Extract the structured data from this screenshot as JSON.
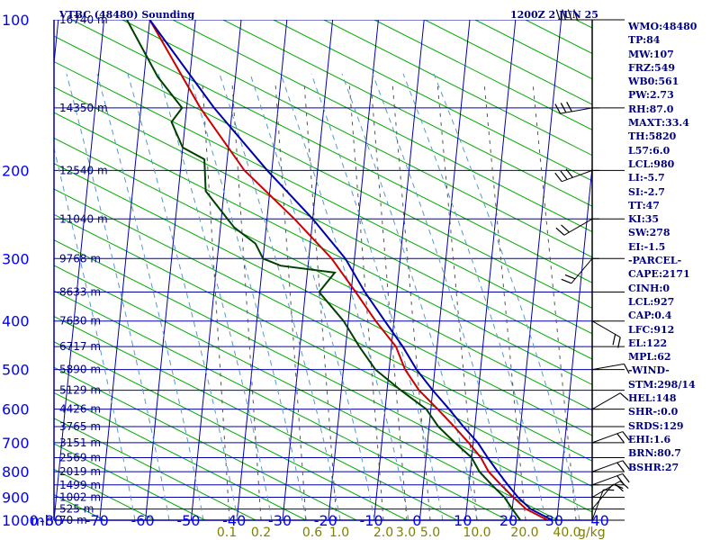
{
  "title_left": "VTBC (48480) Sounding",
  "title_right": "1200Z  2 JUN 25",
  "chart_data": {
    "type": "skew-t",
    "pressure_ticks": [
      100,
      200,
      300,
      400,
      500,
      600,
      700,
      800,
      900,
      1000
    ],
    "pressure_unit": "mb",
    "temperature_ticks": [
      "-80",
      "-70",
      "-60",
      "-50",
      "-40",
      "-30",
      "-20",
      "-10",
      "0",
      "10",
      "20",
      "30",
      "40"
    ],
    "height_labels": [
      {
        "p": 100,
        "label": "16740 m"
      },
      {
        "p": 150,
        "label": "14350 m"
      },
      {
        "p": 200,
        "label": "12540 m"
      },
      {
        "p": 250,
        "label": "11040 m"
      },
      {
        "p": 300,
        "label": "9768 m"
      },
      {
        "p": 350,
        "label": "8633 m"
      },
      {
        "p": 400,
        "label": "7630 m"
      },
      {
        "p": 450,
        "label": "6717 m"
      },
      {
        "p": 500,
        "label": "5890 m"
      },
      {
        "p": 550,
        "label": "5129 m"
      },
      {
        "p": 600,
        "label": "4426 m"
      },
      {
        "p": 650,
        "label": "3765 m"
      },
      {
        "p": 700,
        "label": "3151 m"
      },
      {
        "p": 750,
        "label": "2569 m"
      },
      {
        "p": 800,
        "label": "2019 m"
      },
      {
        "p": 850,
        "label": "1499 m"
      },
      {
        "p": 900,
        "label": "1002 m"
      },
      {
        "p": 950,
        "label": "525 m"
      },
      {
        "p": 1000,
        "label": "70 m"
      }
    ],
    "mixing_ratio_labels": [
      "0.1",
      "0.2",
      "0.6",
      "1.0",
      "2.0",
      "3.0",
      "5.0",
      "10.0",
      "20.0",
      "40.0"
    ],
    "mixing_ratio_unit": "g/kg",
    "series": [
      {
        "color": "#cc0000",
        "points": [
          [
            1000,
            28
          ],
          [
            950,
            23
          ],
          [
            900,
            20
          ],
          [
            850,
            17
          ],
          [
            800,
            14
          ],
          [
            750,
            12
          ],
          [
            700,
            9
          ],
          [
            650,
            5.5
          ],
          [
            600,
            1.5
          ],
          [
            550,
            -3
          ],
          [
            500,
            -6.5
          ],
          [
            450,
            -9
          ],
          [
            400,
            -14
          ],
          [
            350,
            -19
          ],
          [
            300,
            -25
          ],
          [
            250,
            -34
          ],
          [
            200,
            -46
          ],
          [
            150,
            -57
          ],
          [
            100,
            -70
          ]
        ]
      },
      {
        "color": "#004000",
        "points": [
          [
            1000,
            22
          ],
          [
            950,
            20
          ],
          [
            900,
            18
          ],
          [
            850,
            15
          ],
          [
            800,
            12
          ],
          [
            750,
            10
          ],
          [
            700,
            6
          ],
          [
            650,
            2
          ],
          [
            600,
            -1
          ],
          [
            550,
            -7
          ],
          [
            500,
            -13
          ],
          [
            450,
            -17
          ],
          [
            400,
            -21
          ],
          [
            350,
            -27
          ],
          [
            320,
            -24
          ],
          [
            310,
            -36
          ],
          [
            300,
            -40
          ],
          [
            280,
            -42
          ],
          [
            260,
            -47
          ],
          [
            220,
            -54
          ],
          [
            190,
            -55
          ],
          [
            180,
            -60
          ],
          [
            160,
            -63
          ],
          [
            150,
            -61
          ],
          [
            130,
            -67
          ],
          [
            100,
            -75
          ]
        ]
      },
      {
        "color": "#0000aa",
        "points": [
          [
            1000,
            29
          ],
          [
            950,
            24
          ],
          [
            900,
            21
          ],
          [
            850,
            18.5
          ],
          [
            800,
            16
          ],
          [
            750,
            13.5
          ],
          [
            700,
            11
          ],
          [
            650,
            7.5
          ],
          [
            600,
            4
          ],
          [
            550,
            0
          ],
          [
            500,
            -4
          ],
          [
            450,
            -7.5
          ],
          [
            400,
            -12
          ],
          [
            350,
            -17
          ],
          [
            300,
            -22
          ],
          [
            250,
            -30
          ],
          [
            200,
            -41
          ],
          [
            150,
            -54
          ],
          [
            100,
            -70
          ]
        ]
      }
    ],
    "winds": [
      {
        "p": 1000,
        "dir": 200,
        "spd": 5
      },
      {
        "p": 950,
        "dir": 220,
        "spd": 10
      },
      {
        "p": 900,
        "dir": 240,
        "spd": 15
      },
      {
        "p": 850,
        "dir": 250,
        "spd": 15
      },
      {
        "p": 800,
        "dir": 250,
        "spd": 15
      },
      {
        "p": 700,
        "dir": 250,
        "spd": 15
      },
      {
        "p": 600,
        "dir": 240,
        "spd": 10
      },
      {
        "p": 500,
        "dir": 260,
        "spd": 10
      },
      {
        "p": 400,
        "dir": 300,
        "spd": 15
      },
      {
        "p": 300,
        "dir": 40,
        "spd": 15
      },
      {
        "p": 250,
        "dir": 60,
        "spd": 20
      },
      {
        "p": 200,
        "dir": 70,
        "spd": 25
      },
      {
        "p": 150,
        "dir": 80,
        "spd": 30
      },
      {
        "p": 100,
        "dir": 90,
        "spd": 40
      }
    ],
    "grid": true
  },
  "indices": [
    "WMO:48480",
    "TP:84",
    "MW:107",
    "FRZ:549",
    "WB0:561",
    "PW:2.73",
    "RH:87.0",
    "MAXT:33.4",
    "TH:5820",
    "L57:6.0",
    "LCL:980",
    "LI:-5.7",
    "SI:-2.7",
    "TT:47",
    "KI:35",
    "SW:278",
    "EI:-1.5",
    "-PARCEL-",
    "CAPE:2171",
    "CINH:0",
    "LCL:927",
    "CAP:0.4",
    "LFC:912",
    "EL:122",
    "MPL:62",
    "-WIND-",
    "STM:298/14",
    "HEL:148",
    "SHR-:0.0",
    "SRDS:129",
    "EHI:1.6",
    "BRN:80.7",
    "BSHR:27"
  ]
}
